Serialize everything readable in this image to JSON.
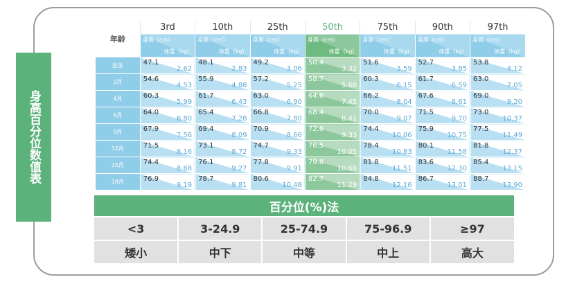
{
  "side_label": "身高百分位数值表",
  "growth_table": {
    "age_header": "年龄",
    "height_unit": "身高（cm）",
    "weight_unit": "体重（kg）",
    "highlight_index": 3,
    "percentiles": [
      "3rd",
      "10th",
      "25th",
      "50th",
      "75th",
      "90th",
      "97th"
    ],
    "rows": [
      {
        "age": "出生",
        "cells": [
          [
            "47.1",
            "2.62"
          ],
          [
            "48.1",
            "2.83"
          ],
          [
            "49.2",
            "3.06"
          ],
          [
            "50.4",
            "3.32"
          ],
          [
            "51.6",
            "3.59"
          ],
          [
            "52.7",
            "3.85"
          ],
          [
            "53.8",
            "4.12"
          ]
        ]
      },
      {
        "age": "2月",
        "cells": [
          [
            "54.6",
            "4.53"
          ],
          [
            "55.9",
            "4.88"
          ],
          [
            "57.2",
            "5.25"
          ],
          [
            "58.7",
            "5.68"
          ],
          [
            "60.3",
            "6.15"
          ],
          [
            "61.7",
            "6.59"
          ],
          [
            "63.0",
            "7.05"
          ]
        ]
      },
      {
        "age": "4月",
        "cells": [
          [
            "60.3",
            "5.99"
          ],
          [
            "61.7",
            "6.43"
          ],
          [
            "63.0",
            "6.90"
          ],
          [
            "64.6",
            "7.45"
          ],
          [
            "66.2",
            "8.04"
          ],
          [
            "67.6",
            "8.61"
          ],
          [
            "69.0",
            "9.20"
          ]
        ]
      },
      {
        "age": "6月",
        "cells": [
          [
            "64.0",
            "6.80"
          ],
          [
            "65.4",
            "7.28"
          ],
          [
            "66.8",
            "7.80"
          ],
          [
            "68.4",
            "8.41"
          ],
          [
            "70.0",
            "9.07"
          ],
          [
            "71.5",
            "9.70"
          ],
          [
            "73.0",
            "10.37"
          ]
        ]
      },
      {
        "age": "9月",
        "cells": [
          [
            "67.9",
            "7.56"
          ],
          [
            "69.4",
            "8.09"
          ],
          [
            "70.9",
            "8.66"
          ],
          [
            "72.6",
            "9.33"
          ],
          [
            "74.4",
            "10.06"
          ],
          [
            "75.9",
            "10.75"
          ],
          [
            "77.5",
            "11.49"
          ]
        ]
      },
      {
        "age": "12月",
        "cells": [
          [
            "71.5",
            "8.16"
          ],
          [
            "73.1",
            "8.72"
          ],
          [
            "74.7",
            "9.33"
          ],
          [
            "76.5",
            "10.05"
          ],
          [
            "78.4",
            "10.83"
          ],
          [
            "80.1",
            "11.58"
          ],
          [
            "81.8",
            "12.37"
          ]
        ]
      },
      {
        "age": "15月",
        "cells": [
          [
            "74.4",
            "8.68"
          ],
          [
            "76.1",
            "9.27"
          ],
          [
            "77.8",
            "9.91"
          ],
          [
            "79.8",
            "10.68"
          ],
          [
            "81.8",
            "11.51"
          ],
          [
            "83.6",
            "12.30"
          ],
          [
            "85.4",
            "13.15"
          ]
        ]
      },
      {
        "age": "18月",
        "cells": [
          [
            "76.9",
            "9.19"
          ],
          [
            "78.7",
            "9.81"
          ],
          [
            "80.6",
            "10.48"
          ],
          [
            "82.7",
            "11.29"
          ],
          [
            "84.8",
            "12.16"
          ],
          [
            "86.7",
            "13.01"
          ],
          [
            "88.7",
            "13.90"
          ]
        ]
      }
    ]
  },
  "method_table": {
    "title": "百分位(%)法",
    "ranges": [
      "<3",
      "3-24.9",
      "25-74.9",
      "75-96.9",
      "≥97"
    ],
    "categories": [
      "矮小",
      "中下",
      "中等",
      "中上",
      "高大"
    ]
  },
  "colors": {
    "green": "#5cb27b",
    "blue": "#8fcde9",
    "light_blue": "#b9e0f2",
    "gray": "#e1e1e1"
  }
}
